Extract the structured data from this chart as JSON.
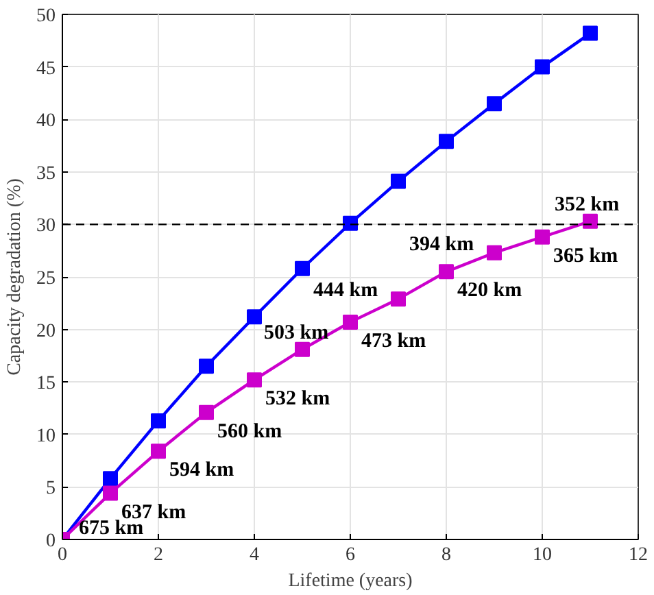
{
  "chart_data": {
    "type": "line",
    "xlabel": "Lifetime (years)",
    "ylabel": "Capacity degradation (%)",
    "x": [
      0,
      1,
      2,
      3,
      4,
      5,
      6,
      7,
      8,
      9,
      10,
      11
    ],
    "series": [
      {
        "color": "#0000ff",
        "values": [
          0,
          5.8,
          11.3,
          16.5,
          21.2,
          25.8,
          30.1,
          34.1,
          37.9,
          41.5,
          45.0,
          48.2
        ]
      },
      {
        "color": "#cc00cc",
        "values": [
          0,
          4.4,
          8.4,
          12.1,
          15.2,
          18.1,
          20.7,
          22.9,
          25.5,
          27.3,
          28.8,
          30.3
        ]
      }
    ],
    "annotations": [
      {
        "text": "675 km",
        "x": 0,
        "y": 0
      },
      {
        "text": "637 km",
        "x": 1,
        "y": 4.4
      },
      {
        "text": "594 km",
        "x": 2,
        "y": 8.4
      },
      {
        "text": "560 km",
        "x": 3,
        "y": 12.1
      },
      {
        "text": "532 km",
        "x": 4,
        "y": 15.2
      },
      {
        "text": "503 km",
        "x": 5,
        "y": 18.1
      },
      {
        "text": "473 km",
        "x": 6,
        "y": 20.7
      },
      {
        "text": "444 km",
        "x": 7,
        "y": 22.9
      },
      {
        "text": "420 km",
        "x": 8,
        "y": 25.5
      },
      {
        "text": "394 km",
        "x": 9,
        "y": 27.3
      },
      {
        "text": "365 km",
        "x": 10,
        "y": 28.8
      },
      {
        "text": "352 km",
        "x": 11,
        "y": 30.3
      }
    ],
    "ref_lines": [
      {
        "axis": "y",
        "value": 30,
        "color": "#000000",
        "line_style": "dashed"
      }
    ],
    "xlim": [
      0,
      12
    ],
    "ylim": [
      0,
      50
    ],
    "xticks": [
      0,
      2,
      4,
      6,
      8,
      10,
      12
    ],
    "yticks": [
      0,
      5,
      10,
      15,
      20,
      25,
      30,
      35,
      40,
      45,
      50
    ],
    "grid": true,
    "marker": "square",
    "line_style": "solid"
  }
}
